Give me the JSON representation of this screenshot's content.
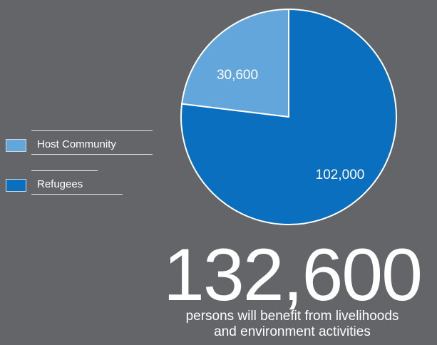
{
  "chart_data": {
    "type": "pie",
    "slices": [
      {
        "name": "Host Community",
        "value": 30600,
        "label": "30,600",
        "color": "#63a6dc"
      },
      {
        "name": "Refugees",
        "value": 102000,
        "label": "102,000",
        "color": "#0a6fbe"
      }
    ],
    "legend_position": "left"
  },
  "legend": {
    "items": [
      {
        "label": "Host Community",
        "color": "#63a6dc"
      },
      {
        "label": "Refugees",
        "color": "#0a6fbe"
      }
    ]
  },
  "summary": {
    "total": "132,600",
    "caption_line1": "persons will benefit from livelihoods",
    "caption_line2": "and environment activities"
  }
}
